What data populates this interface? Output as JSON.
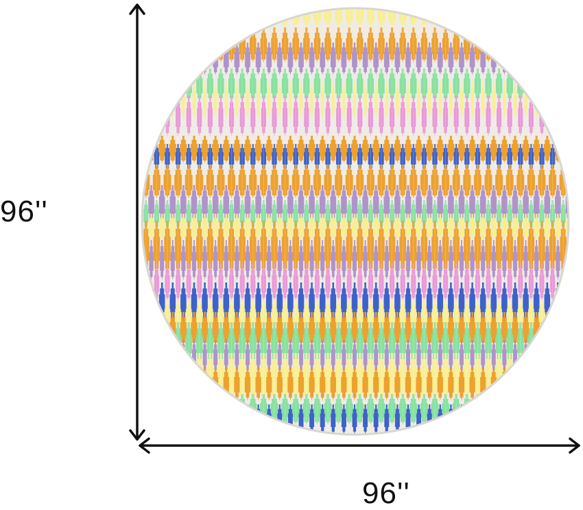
{
  "dimensions": {
    "height_label": "96''",
    "width_label": "96''"
  },
  "product": {
    "shape": "round-rug",
    "pattern": "ikat-chevron"
  },
  "colors": {
    "background": "#ffffff",
    "rug_base": "#efece6",
    "arrow": "#111111",
    "orange": "#ee9a1f",
    "yellow": "#f7ef8e",
    "green": "#7fe09a",
    "pink": "#e98fd6",
    "purple": "#a98cc8",
    "blue": "#2f56c8"
  }
}
